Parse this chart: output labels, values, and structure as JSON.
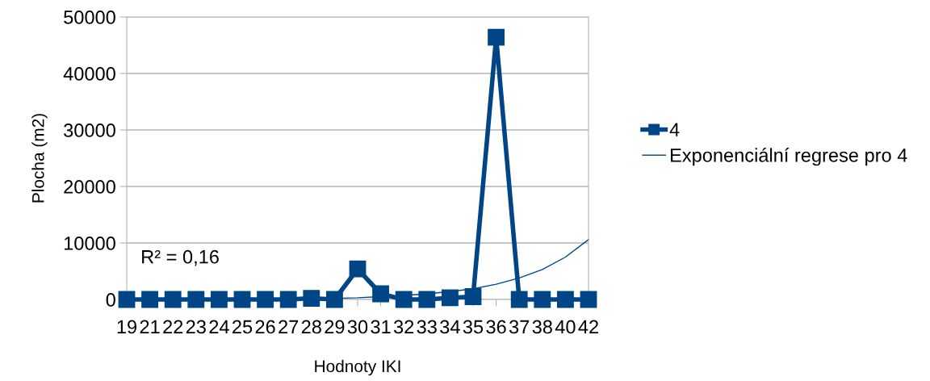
{
  "chart_data": {
    "type": "line",
    "xlabel": "Hodnoty IKI",
    "ylabel": "Plocha (m2)",
    "categories": [
      "19",
      "21",
      "22",
      "23",
      "24",
      "25",
      "26",
      "27",
      "28",
      "29",
      "30",
      "31",
      "32",
      "33",
      "34",
      "35",
      "36",
      "37",
      "38",
      "40",
      "42"
    ],
    "series": [
      {
        "name": "4",
        "color": "#004586",
        "marker": "square",
        "values": [
          0,
          0,
          0,
          0,
          0,
          0,
          0,
          0,
          200,
          0,
          5400,
          1000,
          0,
          0,
          300,
          500,
          46400,
          0,
          0,
          0,
          0
        ]
      },
      {
        "name": "Exponenciální regrese pro 4",
        "type": "line",
        "color": "#004586",
        "marker": "none",
        "values": [
          0,
          0,
          0,
          0,
          0,
          100,
          100,
          100,
          200,
          200,
          300,
          500,
          700,
          1000,
          1400,
          1900,
          2700,
          3800,
          5300,
          7500,
          10600
        ]
      }
    ],
    "ylim": [
      0,
      50000
    ],
    "yticks": [
      0,
      10000,
      20000,
      30000,
      40000,
      50000
    ],
    "grid": "y",
    "legend": "right",
    "annotations": [
      "R² = 0,16"
    ]
  }
}
